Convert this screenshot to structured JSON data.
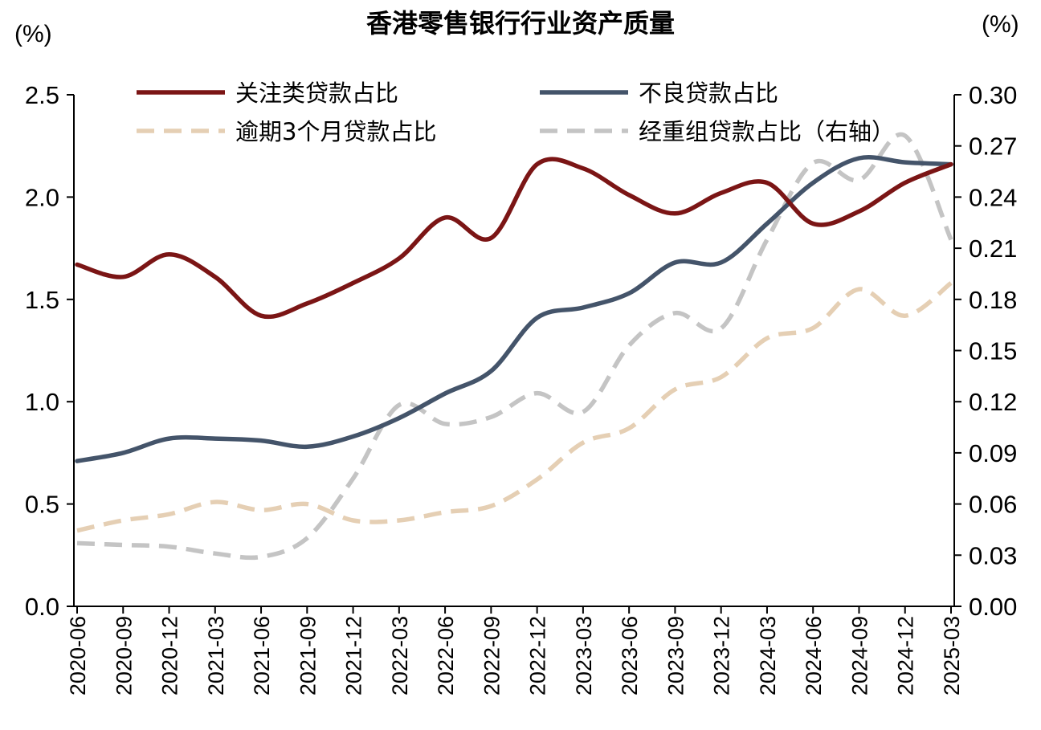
{
  "chart_data": {
    "type": "line",
    "title": "香港零售银行行业资产质量",
    "y_left_unit": "(%)",
    "y_right_unit": "(%)",
    "y_left_range": [
      0,
      2.5
    ],
    "y_right_range": [
      0,
      0.3
    ],
    "y_left_ticks": [
      "2.5",
      "2.0",
      "1.5",
      "1.0",
      "0.5",
      "0.0"
    ],
    "y_right_ticks": [
      "0.30",
      "0.27",
      "0.24",
      "0.21",
      "0.18",
      "0.15",
      "0.12",
      "0.09",
      "0.06",
      "0.03",
      "0.00"
    ],
    "categories": [
      "2020-06",
      "2020-09",
      "2020-12",
      "2021-03",
      "2021-06",
      "2021-09",
      "2021-12",
      "2022-03",
      "2022-06",
      "2022-09",
      "2022-12",
      "2023-03",
      "2023-06",
      "2023-09",
      "2023-12",
      "2024-03",
      "2024-06",
      "2024-09",
      "2024-12",
      "2025-03"
    ],
    "legend_position": "top",
    "series": [
      {
        "name": "关注类贷款占比",
        "axis": "left",
        "color": "#7b1515",
        "dash": "solid",
        "values": [
          1.67,
          1.61,
          1.72,
          1.61,
          1.42,
          1.48,
          1.58,
          1.7,
          1.9,
          1.8,
          2.16,
          2.14,
          2.01,
          1.92,
          2.02,
          2.07,
          1.87,
          1.93,
          2.07,
          2.16
        ]
      },
      {
        "name": "不良贷款占比",
        "axis": "left",
        "color": "#44546a",
        "dash": "solid",
        "values": [
          0.71,
          0.75,
          0.82,
          0.82,
          0.81,
          0.78,
          0.83,
          0.92,
          1.04,
          1.15,
          1.41,
          1.46,
          1.53,
          1.68,
          1.68,
          1.87,
          2.07,
          2.19,
          2.17,
          2.16
        ]
      },
      {
        "name": "逾期3个月贷款占比",
        "axis": "left",
        "color": "#e5cfb4",
        "dash": "dashed",
        "values": [
          0.37,
          0.42,
          0.45,
          0.51,
          0.47,
          0.5,
          0.42,
          0.42,
          0.46,
          0.49,
          0.62,
          0.8,
          0.87,
          1.06,
          1.12,
          1.31,
          1.36,
          1.55,
          1.42,
          1.58
        ]
      },
      {
        "name": "经重组贷款占比（右轴）",
        "axis": "right",
        "color": "#c4c4c4",
        "dash": "dashed",
        "values": [
          0.037,
          0.036,
          0.035,
          0.031,
          0.029,
          0.04,
          0.075,
          0.118,
          0.107,
          0.111,
          0.125,
          0.114,
          0.153,
          0.172,
          0.163,
          0.215,
          0.26,
          0.25,
          0.276,
          0.215
        ]
      }
    ]
  }
}
